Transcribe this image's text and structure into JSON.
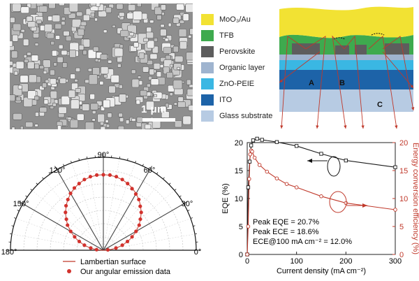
{
  "sem": {
    "scale_label": "1 μm"
  },
  "device": {
    "layers": [
      {
        "label": "MoO₃/Au",
        "color": "#f2e233"
      },
      {
        "label": "TFB",
        "color": "#3eaa4e"
      },
      {
        "label": "Perovskite",
        "color": "#5d5d5d"
      },
      {
        "label": "Organic layer",
        "color": "#9fb4cf"
      },
      {
        "label": "ZnO-PEIE",
        "color": "#3ab7e3"
      },
      {
        "label": "ITO",
        "color": "#1d63a8"
      },
      {
        "label": "Glass substrate",
        "color": "#b7cbe3"
      }
    ],
    "ray_labels": [
      "A",
      "B",
      "C"
    ],
    "ray_color": "#c0392b"
  },
  "chart_data": [
    {
      "type": "scatter",
      "subtype": "polar",
      "angle_labels": [
        "0°",
        "30°",
        "60°",
        "90°",
        "120°",
        "150°",
        "180°"
      ],
      "legend": [
        "Lambertian surface",
        "Our angular emission data"
      ],
      "series": [
        {
          "name": "Lambertian surface",
          "style": "line",
          "color": "#c0392b"
        },
        {
          "name": "Our angular emission data",
          "style": "points",
          "color": "#d2322d",
          "angles_deg": [
            5,
            10,
            15,
            20,
            25,
            30,
            35,
            40,
            45,
            50,
            55,
            60,
            65,
            70,
            75,
            80,
            85,
            90,
            95,
            100,
            105,
            110,
            115,
            120,
            125,
            130,
            135,
            140,
            145,
            150,
            155,
            160,
            165,
            170,
            175
          ],
          "values": [
            0.06,
            0.17,
            0.26,
            0.34,
            0.42,
            0.5,
            0.58,
            0.64,
            0.71,
            0.76,
            0.82,
            0.86,
            0.9,
            0.94,
            0.97,
            0.99,
            1.0,
            1.0,
            1.0,
            0.99,
            0.97,
            0.94,
            0.91,
            0.87,
            0.82,
            0.77,
            0.71,
            0.64,
            0.58,
            0.5,
            0.42,
            0.34,
            0.26,
            0.17,
            0.09
          ]
        }
      ]
    },
    {
      "type": "line",
      "xlabel": "Current density (mA cm⁻²)",
      "ylabel": "EQE (%)",
      "y2label": "Energy conversion efficiency (%)",
      "xlim": [
        0,
        300
      ],
      "ylim": [
        0,
        20
      ],
      "y2lim": [
        0,
        20
      ],
      "xticks": [
        "0",
        "100",
        "200",
        "300"
      ],
      "yticks": [
        "0",
        "5",
        "10",
        "15",
        "20"
      ],
      "y2ticks": [
        "0",
        "5",
        "10",
        "15",
        "20"
      ],
      "annotations": [
        "Peak EQE = 20.7%",
        "Peak ECE = 18.6%",
        "ECE@100 mA cm⁻² = 12.0%"
      ],
      "series": [
        {
          "name": "EQE",
          "color": "#1a1a1a",
          "axis": "left",
          "marker": "square",
          "x": [
            0,
            2,
            5,
            8,
            12,
            20,
            30,
            60,
            100,
            150,
            200,
            300
          ],
          "y": [
            0,
            12.0,
            16.6,
            19.5,
            20.4,
            20.7,
            20.5,
            20.1,
            19.4,
            18.0,
            16.8,
            15.6
          ]
        },
        {
          "name": "Energy conversion efficiency",
          "color": "#c0392b",
          "axis": "right",
          "marker": "circle",
          "x": [
            0,
            2,
            4,
            6,
            8,
            10,
            15,
            25,
            40,
            60,
            80,
            100,
            150,
            200,
            300
          ],
          "y": [
            0,
            5.0,
            13.5,
            17.9,
            18.6,
            18.4,
            17.3,
            16.0,
            14.8,
            13.6,
            12.6,
            12.0,
            10.4,
            9.2,
            8.0
          ]
        }
      ]
    }
  ]
}
